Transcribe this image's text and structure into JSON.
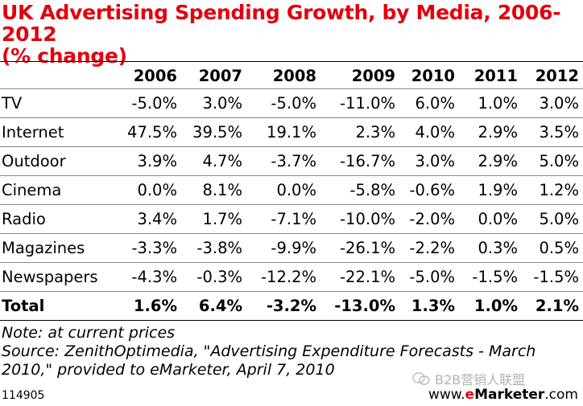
{
  "chart_data": {
    "type": "table",
    "title": "UK Advertising Spending Growth, by Media, 2006-2012",
    "subtitle": "(% change)",
    "columns": [
      "",
      "2006",
      "2007",
      "2008",
      "2009",
      "2010",
      "2011",
      "2012"
    ],
    "rows": [
      {
        "label": "TV",
        "values": [
          "-5.0%",
          "3.0%",
          "-5.0%",
          "-11.0%",
          "6.0%",
          "1.0%",
          "3.0%"
        ]
      },
      {
        "label": "Internet",
        "values": [
          "47.5%",
          "39.5%",
          "19.1%",
          "2.3%",
          "4.0%",
          "2.9%",
          "3.5%"
        ]
      },
      {
        "label": "Outdoor",
        "values": [
          "3.9%",
          "4.7%",
          "-3.7%",
          "-16.7%",
          "3.0%",
          "2.9%",
          "5.0%"
        ]
      },
      {
        "label": "Cinema",
        "values": [
          "0.0%",
          "8.1%",
          "0.0%",
          "-5.8%",
          "-0.6%",
          "1.9%",
          "1.2%"
        ]
      },
      {
        "label": "Radio",
        "values": [
          "3.4%",
          "1.7%",
          "-7.1%",
          "-10.0%",
          "-2.0%",
          "0.0%",
          "5.0%"
        ]
      },
      {
        "label": "Magazines",
        "values": [
          "-3.3%",
          "-3.8%",
          "-9.9%",
          "-26.1%",
          "-2.2%",
          "0.3%",
          "0.5%"
        ]
      },
      {
        "label": "Newspapers",
        "values": [
          "-4.3%",
          "-0.3%",
          "-12.2%",
          "-22.1%",
          "-5.0%",
          "-1.5%",
          "-1.5%"
        ]
      },
      {
        "label": "Total",
        "values": [
          "1.6%",
          "6.4%",
          "-3.2%",
          "-13.0%",
          "1.3%",
          "1.0%",
          "2.1%"
        ],
        "bold": true
      }
    ]
  },
  "notes": {
    "line1": "Note: at current prices",
    "line2": "Source: ZenithOptimedia, \"Advertising Expenditure Forecasts - March",
    "line3": "2010,\" provided to eMarketer, April 7, 2010"
  },
  "footer": {
    "chart_id": "114905",
    "logo_prefix": "www.",
    "logo_accent": "e",
    "logo_name": "Marketer",
    "logo_suffix": ".com",
    "watermark": "B2B营销人联盟"
  },
  "colors": {
    "title": "#e3000f",
    "accent": "#e3000f"
  }
}
